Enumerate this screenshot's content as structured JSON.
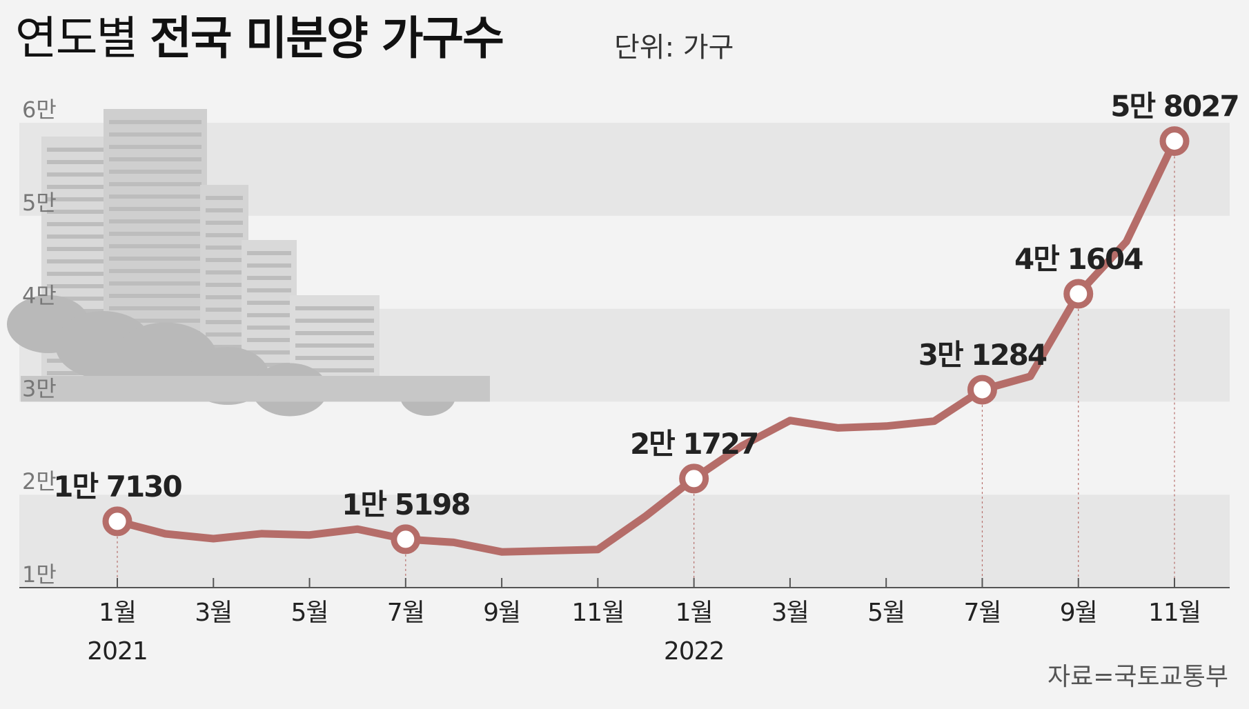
{
  "title": {
    "light": "연도별",
    "bold": "전국 미분양 가구수"
  },
  "unit": "단위: 가구",
  "source": "자료=국토교통부",
  "colors": {
    "line": "#b56d69",
    "band": "#e6e6e6",
    "axis": "#555555"
  },
  "chart_data": {
    "type": "line",
    "title": "연도별 전국 미분양 가구수",
    "unit": "단위: 가구",
    "ylim": [
      10000,
      60000
    ],
    "y_ticks": [
      {
        "value": 10000,
        "label": "1만"
      },
      {
        "value": 20000,
        "label": "2만"
      },
      {
        "value": 30000,
        "label": "3만"
      },
      {
        "value": 40000,
        "label": "4만"
      },
      {
        "value": 50000,
        "label": "5만"
      },
      {
        "value": 60000,
        "label": "6만"
      }
    ],
    "x_ticks": [
      {
        "index": 0,
        "label": "1월",
        "year": "2021"
      },
      {
        "index": 2,
        "label": "3월"
      },
      {
        "index": 4,
        "label": "5월"
      },
      {
        "index": 6,
        "label": "7월"
      },
      {
        "index": 8,
        "label": "9월"
      },
      {
        "index": 10,
        "label": "11월"
      },
      {
        "index": 12,
        "label": "1월",
        "year": "2022"
      },
      {
        "index": 14,
        "label": "3월"
      },
      {
        "index": 16,
        "label": "5월"
      },
      {
        "index": 18,
        "label": "7월"
      },
      {
        "index": 20,
        "label": "9월"
      },
      {
        "index": 22,
        "label": "11월"
      }
    ],
    "series": [
      {
        "values": [
          17130,
          15786,
          15270,
          15798,
          15660,
          16289,
          15198,
          14864,
          13842,
          13972,
          14094,
          17710,
          21727,
          25254,
          27974,
          27180,
          27375,
          27910,
          31284,
          32722,
          41604,
          47217,
          58027
        ],
        "markers": [
          {
            "index": 0,
            "label": "1만 7130"
          },
          {
            "index": 6,
            "label": "1만 5198"
          },
          {
            "index": 12,
            "label": "2만 1727"
          },
          {
            "index": 18,
            "label": "3만 1284"
          },
          {
            "index": 20,
            "label": "4만 1604"
          },
          {
            "index": 22,
            "label": "5만 8027"
          }
        ]
      }
    ],
    "grid": "alternating horizontal bands",
    "background_image": "apartment-buildings-photo"
  }
}
